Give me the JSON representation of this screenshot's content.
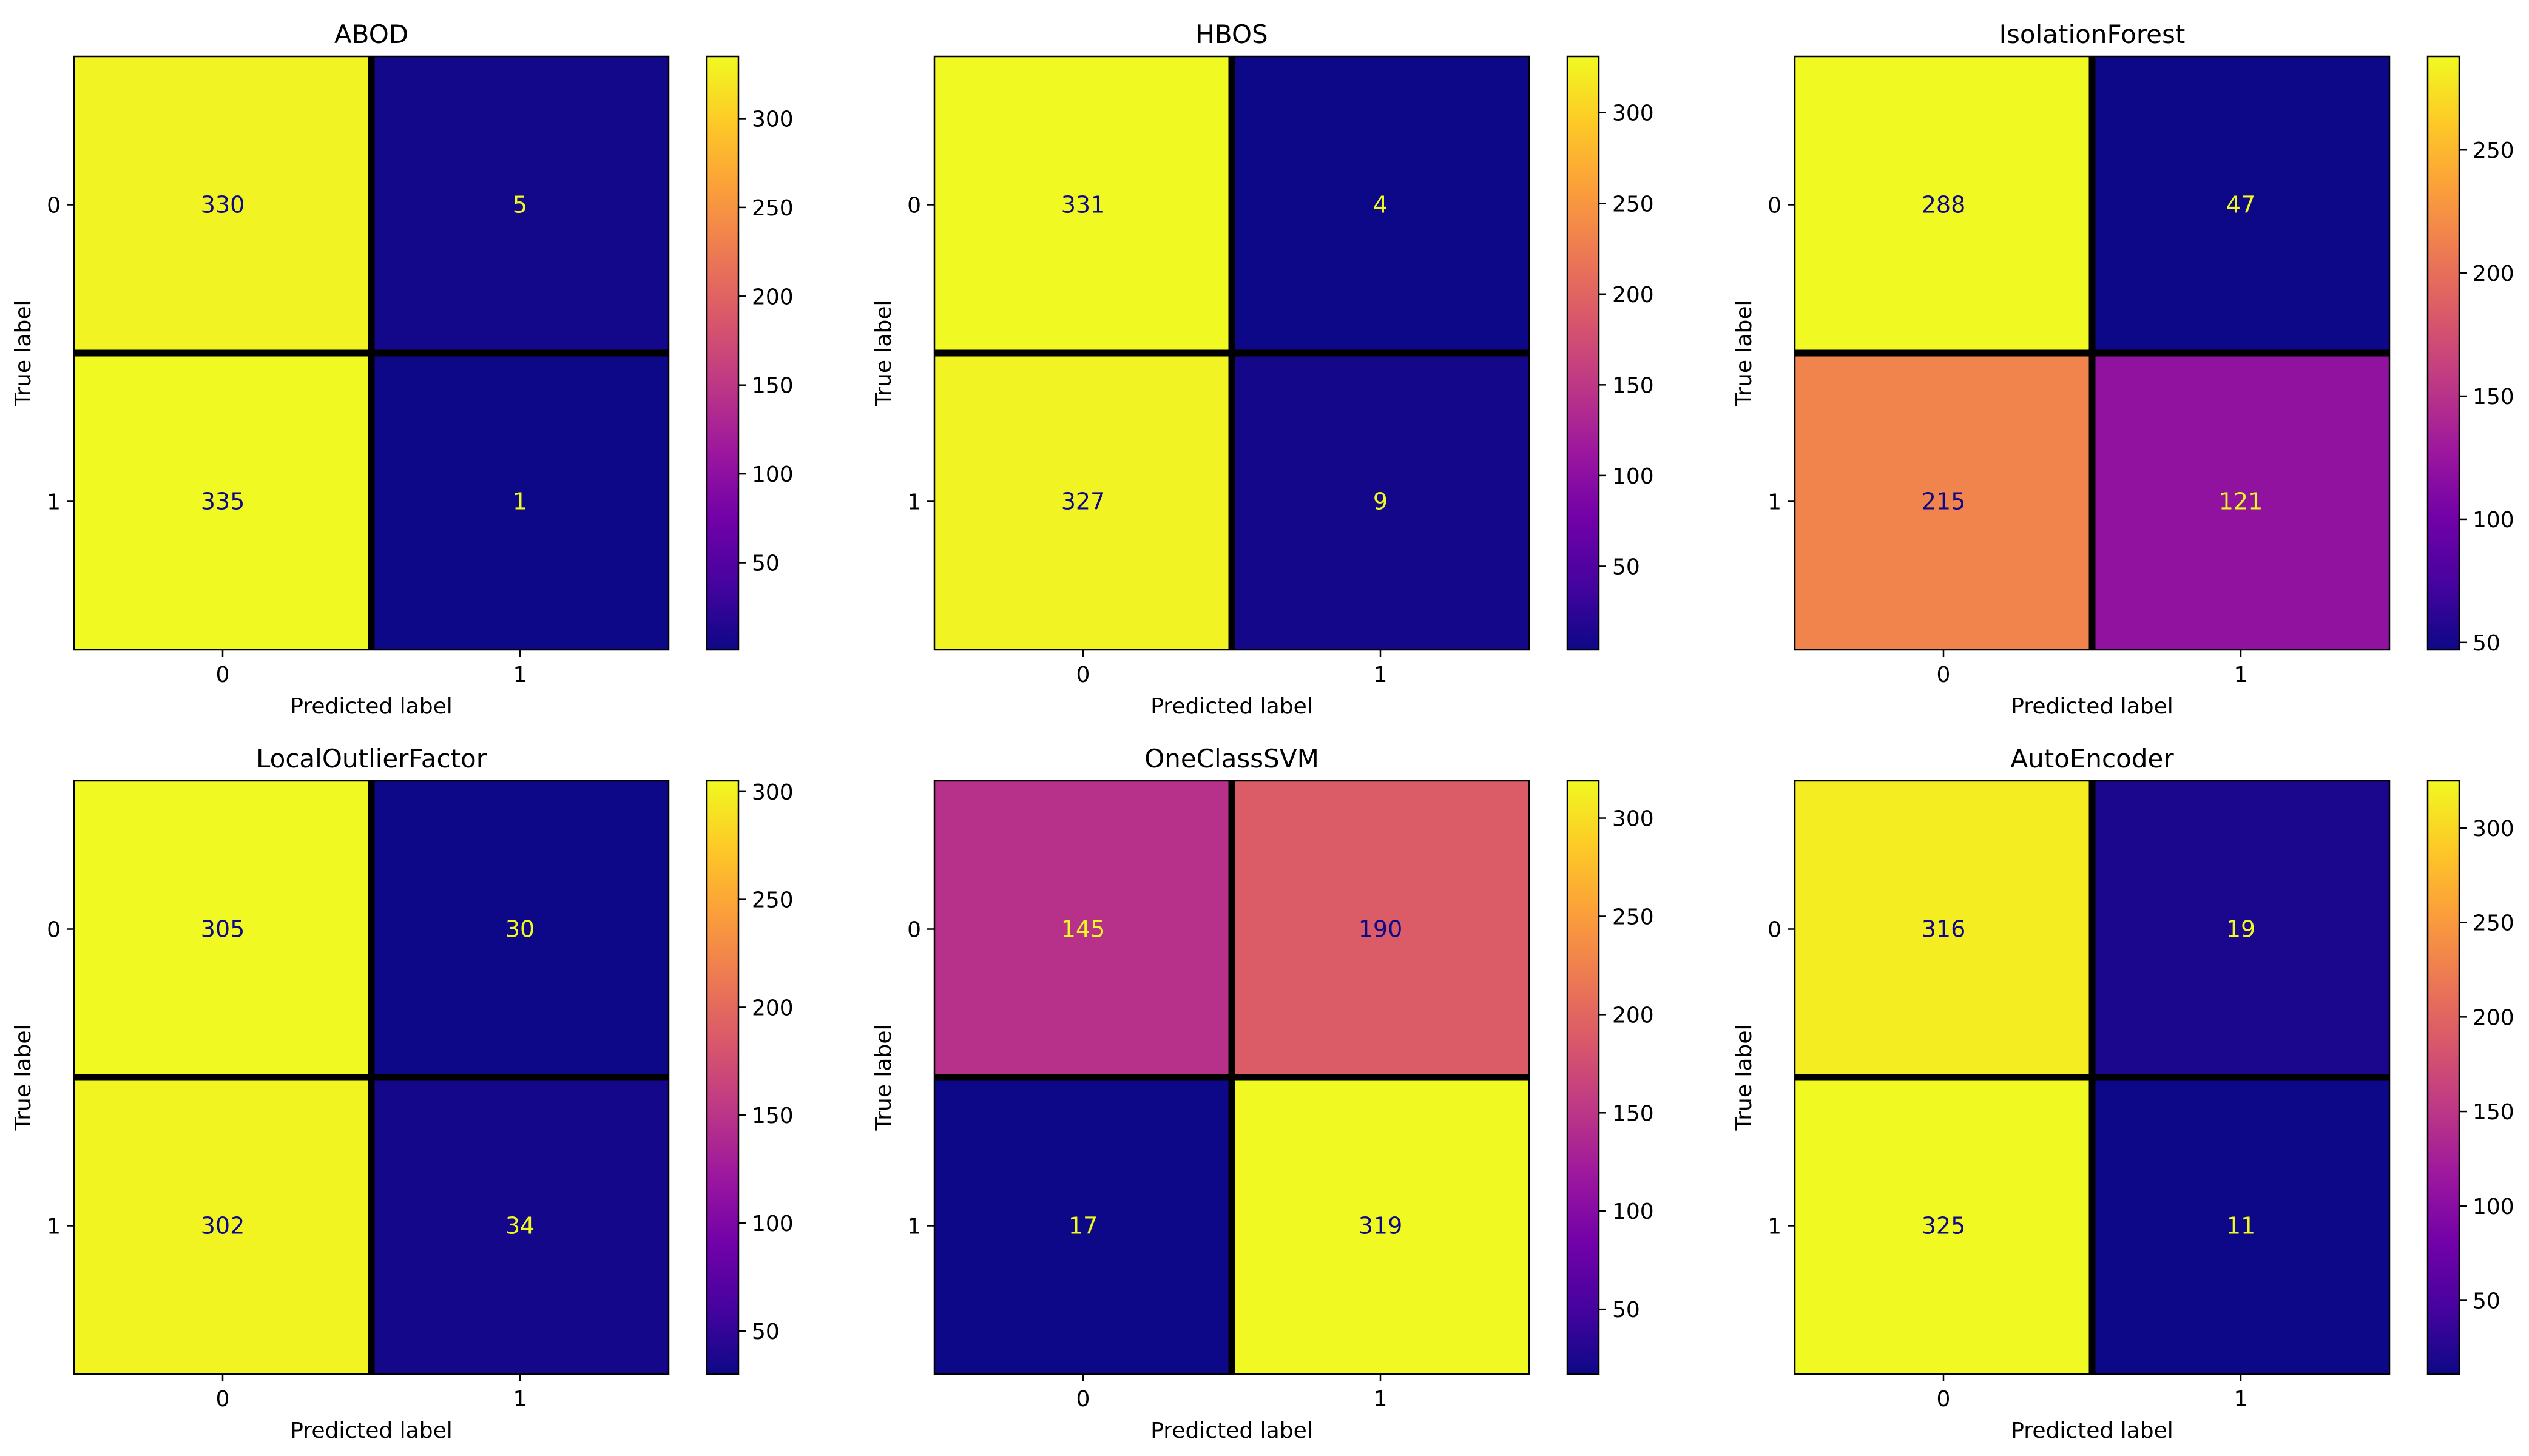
{
  "chart_data": [
    {
      "type": "heatmap",
      "title": "ABOD",
      "xlabel": "Predicted label",
      "ylabel": "True label",
      "x_categories": [
        "0",
        "1"
      ],
      "y_categories": [
        "0",
        "1"
      ],
      "values": [
        [
          330,
          5
        ],
        [
          335,
          1
        ]
      ],
      "colorbar": {
        "colormap": "plasma",
        "vmin": 1,
        "vmax": 335,
        "ticks": [
          50,
          100,
          150,
          200,
          250,
          300
        ]
      }
    },
    {
      "type": "heatmap",
      "title": "HBOS",
      "xlabel": "Predicted label",
      "ylabel": "True label",
      "x_categories": [
        "0",
        "1"
      ],
      "y_categories": [
        "0",
        "1"
      ],
      "values": [
        [
          331,
          4
        ],
        [
          327,
          9
        ]
      ],
      "colorbar": {
        "colormap": "plasma",
        "vmin": 4,
        "vmax": 331,
        "ticks": [
          50,
          100,
          150,
          200,
          250,
          300
        ]
      }
    },
    {
      "type": "heatmap",
      "title": "IsolationForest",
      "xlabel": "Predicted label",
      "ylabel": "True label",
      "x_categories": [
        "0",
        "1"
      ],
      "y_categories": [
        "0",
        "1"
      ],
      "values": [
        [
          288,
          47
        ],
        [
          215,
          121
        ]
      ],
      "colorbar": {
        "colormap": "plasma",
        "vmin": 47,
        "vmax": 288,
        "ticks": [
          50,
          100,
          150,
          200,
          250
        ]
      }
    },
    {
      "type": "heatmap",
      "title": "LocalOutlierFactor",
      "xlabel": "Predicted label",
      "ylabel": "True label",
      "x_categories": [
        "0",
        "1"
      ],
      "y_categories": [
        "0",
        "1"
      ],
      "values": [
        [
          305,
          30
        ],
        [
          302,
          34
        ]
      ],
      "colorbar": {
        "colormap": "plasma",
        "vmin": 30,
        "vmax": 305,
        "ticks": [
          50,
          100,
          150,
          200,
          250,
          300
        ]
      }
    },
    {
      "type": "heatmap",
      "title": "OneClassSVM",
      "xlabel": "Predicted label",
      "ylabel": "True label",
      "x_categories": [
        "0",
        "1"
      ],
      "y_categories": [
        "0",
        "1"
      ],
      "values": [
        [
          145,
          190
        ],
        [
          17,
          319
        ]
      ],
      "colorbar": {
        "colormap": "plasma",
        "vmin": 17,
        "vmax": 319,
        "ticks": [
          50,
          100,
          150,
          200,
          250,
          300
        ]
      }
    },
    {
      "type": "heatmap",
      "title": "AutoEncoder",
      "xlabel": "Predicted label",
      "ylabel": "True label",
      "x_categories": [
        "0",
        "1"
      ],
      "y_categories": [
        "0",
        "1"
      ],
      "values": [
        [
          316,
          19
        ],
        [
          325,
          11
        ]
      ],
      "colorbar": {
        "colormap": "plasma",
        "vmin": 11,
        "vmax": 325,
        "ticks": [
          50,
          100,
          150,
          200,
          250,
          300
        ]
      }
    }
  ],
  "colors": {
    "plasma_stops": [
      "#0d0887",
      "#46039f",
      "#7201a8",
      "#9c179e",
      "#bd3786",
      "#d8576b",
      "#ed7953",
      "#fb9f3a",
      "#fdca26",
      "#f0f921"
    ],
    "divider": "#000000",
    "frame": "#000000"
  }
}
